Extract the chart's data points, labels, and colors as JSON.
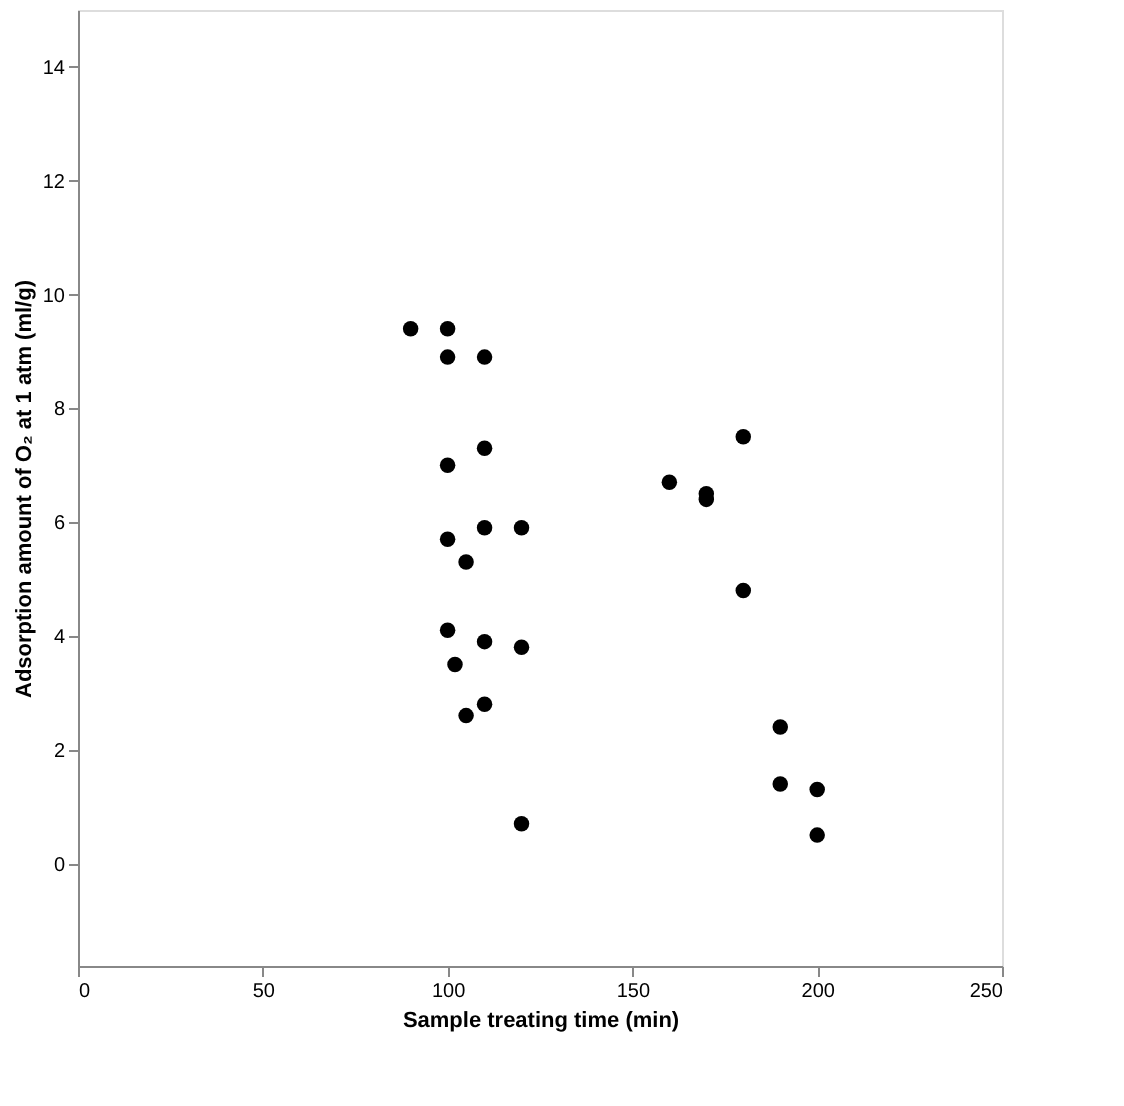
{
  "chart_data": {
    "type": "scatter",
    "xlabel": "Sample treating time (min)",
    "ylabel": "Adsorption amount of O₂ at 1 atm (ml/g)",
    "x": [
      90,
      100,
      100,
      110,
      110,
      100,
      160,
      170,
      170,
      180,
      110,
      120,
      100,
      105,
      180,
      100,
      110,
      120,
      102,
      110,
      105,
      190,
      190,
      200,
      120,
      200
    ],
    "series": [
      {
        "color": "#000000",
        "values": [
          9.4,
          9.4,
          8.9,
          8.9,
          7.3,
          7.0,
          6.7,
          6.5,
          6.4,
          7.5,
          5.9,
          5.9,
          5.7,
          5.3,
          4.8,
          4.1,
          3.9,
          3.8,
          3.5,
          2.8,
          2.6,
          2.4,
          1.4,
          1.3,
          0.7,
          0.5
        ]
      }
    ],
    "xlim": [
      0,
      250
    ],
    "xticks": [
      0,
      50,
      100,
      150,
      200,
      250
    ],
    "ylim": [
      -1.8,
      15
    ],
    "yticks": [
      0,
      2,
      4,
      6,
      8,
      10,
      12,
      14
    ],
    "grid": false,
    "marker": "circle"
  }
}
